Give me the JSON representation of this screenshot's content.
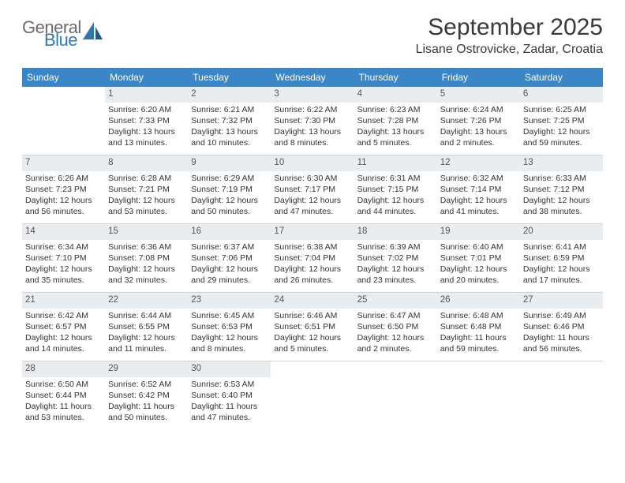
{
  "logo": {
    "part1": "General",
    "part2": "Blue"
  },
  "title": "September 2025",
  "location": "Lisane Ostrovicke, Zadar, Croatia",
  "colors": {
    "header_bg": "#3b86c6",
    "header_text": "#ffffff",
    "daynum_bg": "#e9edef",
    "border": "#cfd6db",
    "logo_gray": "#6a6a6a",
    "logo_blue": "#2f78b8",
    "body_text": "#333333"
  },
  "weekdays": [
    "Sunday",
    "Monday",
    "Tuesday",
    "Wednesday",
    "Thursday",
    "Friday",
    "Saturday"
  ],
  "weeks": [
    [
      {
        "empty": true
      },
      {
        "num": "1",
        "l1": "Sunrise: 6:20 AM",
        "l2": "Sunset: 7:33 PM",
        "l3": "Daylight: 13 hours",
        "l4": "and 13 minutes."
      },
      {
        "num": "2",
        "l1": "Sunrise: 6:21 AM",
        "l2": "Sunset: 7:32 PM",
        "l3": "Daylight: 13 hours",
        "l4": "and 10 minutes."
      },
      {
        "num": "3",
        "l1": "Sunrise: 6:22 AM",
        "l2": "Sunset: 7:30 PM",
        "l3": "Daylight: 13 hours",
        "l4": "and 8 minutes."
      },
      {
        "num": "4",
        "l1": "Sunrise: 6:23 AM",
        "l2": "Sunset: 7:28 PM",
        "l3": "Daylight: 13 hours",
        "l4": "and 5 minutes."
      },
      {
        "num": "5",
        "l1": "Sunrise: 6:24 AM",
        "l2": "Sunset: 7:26 PM",
        "l3": "Daylight: 13 hours",
        "l4": "and 2 minutes."
      },
      {
        "num": "6",
        "l1": "Sunrise: 6:25 AM",
        "l2": "Sunset: 7:25 PM",
        "l3": "Daylight: 12 hours",
        "l4": "and 59 minutes."
      }
    ],
    [
      {
        "num": "7",
        "l1": "Sunrise: 6:26 AM",
        "l2": "Sunset: 7:23 PM",
        "l3": "Daylight: 12 hours",
        "l4": "and 56 minutes."
      },
      {
        "num": "8",
        "l1": "Sunrise: 6:28 AM",
        "l2": "Sunset: 7:21 PM",
        "l3": "Daylight: 12 hours",
        "l4": "and 53 minutes."
      },
      {
        "num": "9",
        "l1": "Sunrise: 6:29 AM",
        "l2": "Sunset: 7:19 PM",
        "l3": "Daylight: 12 hours",
        "l4": "and 50 minutes."
      },
      {
        "num": "10",
        "l1": "Sunrise: 6:30 AM",
        "l2": "Sunset: 7:17 PM",
        "l3": "Daylight: 12 hours",
        "l4": "and 47 minutes."
      },
      {
        "num": "11",
        "l1": "Sunrise: 6:31 AM",
        "l2": "Sunset: 7:15 PM",
        "l3": "Daylight: 12 hours",
        "l4": "and 44 minutes."
      },
      {
        "num": "12",
        "l1": "Sunrise: 6:32 AM",
        "l2": "Sunset: 7:14 PM",
        "l3": "Daylight: 12 hours",
        "l4": "and 41 minutes."
      },
      {
        "num": "13",
        "l1": "Sunrise: 6:33 AM",
        "l2": "Sunset: 7:12 PM",
        "l3": "Daylight: 12 hours",
        "l4": "and 38 minutes."
      }
    ],
    [
      {
        "num": "14",
        "l1": "Sunrise: 6:34 AM",
        "l2": "Sunset: 7:10 PM",
        "l3": "Daylight: 12 hours",
        "l4": "and 35 minutes."
      },
      {
        "num": "15",
        "l1": "Sunrise: 6:36 AM",
        "l2": "Sunset: 7:08 PM",
        "l3": "Daylight: 12 hours",
        "l4": "and 32 minutes."
      },
      {
        "num": "16",
        "l1": "Sunrise: 6:37 AM",
        "l2": "Sunset: 7:06 PM",
        "l3": "Daylight: 12 hours",
        "l4": "and 29 minutes."
      },
      {
        "num": "17",
        "l1": "Sunrise: 6:38 AM",
        "l2": "Sunset: 7:04 PM",
        "l3": "Daylight: 12 hours",
        "l4": "and 26 minutes."
      },
      {
        "num": "18",
        "l1": "Sunrise: 6:39 AM",
        "l2": "Sunset: 7:02 PM",
        "l3": "Daylight: 12 hours",
        "l4": "and 23 minutes."
      },
      {
        "num": "19",
        "l1": "Sunrise: 6:40 AM",
        "l2": "Sunset: 7:01 PM",
        "l3": "Daylight: 12 hours",
        "l4": "and 20 minutes."
      },
      {
        "num": "20",
        "l1": "Sunrise: 6:41 AM",
        "l2": "Sunset: 6:59 PM",
        "l3": "Daylight: 12 hours",
        "l4": "and 17 minutes."
      }
    ],
    [
      {
        "num": "21",
        "l1": "Sunrise: 6:42 AM",
        "l2": "Sunset: 6:57 PM",
        "l3": "Daylight: 12 hours",
        "l4": "and 14 minutes."
      },
      {
        "num": "22",
        "l1": "Sunrise: 6:44 AM",
        "l2": "Sunset: 6:55 PM",
        "l3": "Daylight: 12 hours",
        "l4": "and 11 minutes."
      },
      {
        "num": "23",
        "l1": "Sunrise: 6:45 AM",
        "l2": "Sunset: 6:53 PM",
        "l3": "Daylight: 12 hours",
        "l4": "and 8 minutes."
      },
      {
        "num": "24",
        "l1": "Sunrise: 6:46 AM",
        "l2": "Sunset: 6:51 PM",
        "l3": "Daylight: 12 hours",
        "l4": "and 5 minutes."
      },
      {
        "num": "25",
        "l1": "Sunrise: 6:47 AM",
        "l2": "Sunset: 6:50 PM",
        "l3": "Daylight: 12 hours",
        "l4": "and 2 minutes."
      },
      {
        "num": "26",
        "l1": "Sunrise: 6:48 AM",
        "l2": "Sunset: 6:48 PM",
        "l3": "Daylight: 11 hours",
        "l4": "and 59 minutes."
      },
      {
        "num": "27",
        "l1": "Sunrise: 6:49 AM",
        "l2": "Sunset: 6:46 PM",
        "l3": "Daylight: 11 hours",
        "l4": "and 56 minutes."
      }
    ],
    [
      {
        "num": "28",
        "l1": "Sunrise: 6:50 AM",
        "l2": "Sunset: 6:44 PM",
        "l3": "Daylight: 11 hours",
        "l4": "and 53 minutes."
      },
      {
        "num": "29",
        "l1": "Sunrise: 6:52 AM",
        "l2": "Sunset: 6:42 PM",
        "l3": "Daylight: 11 hours",
        "l4": "and 50 minutes."
      },
      {
        "num": "30",
        "l1": "Sunrise: 6:53 AM",
        "l2": "Sunset: 6:40 PM",
        "l3": "Daylight: 11 hours",
        "l4": "and 47 minutes."
      },
      {
        "empty": true
      },
      {
        "empty": true
      },
      {
        "empty": true
      },
      {
        "empty": true
      }
    ]
  ]
}
